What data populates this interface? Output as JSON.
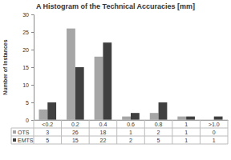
{
  "chart_data": {
    "type": "bar",
    "title": "A Histogram of the Technical Accuracies [mm]",
    "y_label": "Number of Instances",
    "categories": [
      "<0.2",
      "0.2",
      "0.4",
      "0.6",
      "0.8",
      "1",
      ">1.0"
    ],
    "series": [
      {
        "name": "OTS",
        "color": "#a6a6a6",
        "values": [
          3,
          26,
          18,
          1,
          2,
          1,
          0
        ]
      },
      {
        "name": "EMTS",
        "color": "#404040",
        "values": [
          5,
          15,
          22,
          2,
          5,
          1,
          1
        ]
      }
    ],
    "ylim": [
      0,
      30
    ],
    "yticks": [
      0,
      5,
      10,
      15,
      20,
      25,
      30
    ],
    "grid": false
  }
}
